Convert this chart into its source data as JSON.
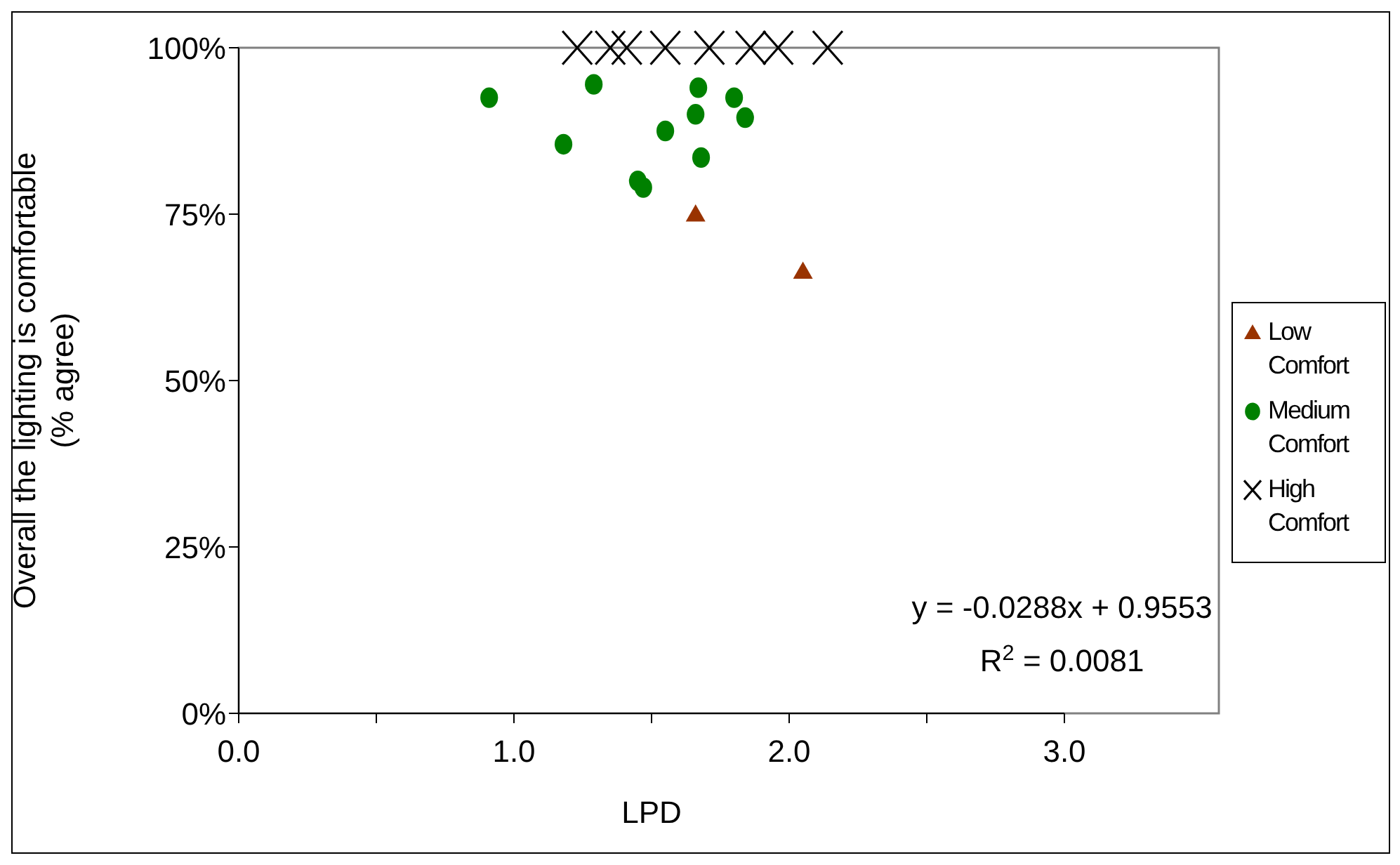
{
  "chart_data": {
    "type": "scatter",
    "xlabel": "LPD",
    "ylabel": "Overall the lighting is comfortable\n(% agree)",
    "xlim": [
      0,
      3
    ],
    "xticks": [
      {
        "value": 0,
        "label": "0.0"
      },
      {
        "value": 0.5,
        "label": null
      },
      {
        "value": 1,
        "label": "1.0"
      },
      {
        "value": 1.5,
        "label": null
      },
      {
        "value": 2,
        "label": "2.0"
      },
      {
        "value": 2.5,
        "label": null
      },
      {
        "value": 3,
        "label": "3.0"
      }
    ],
    "ylim": [
      0,
      100
    ],
    "yticks": [
      {
        "value": 0,
        "label": "0%"
      },
      {
        "value": 25,
        "label": "25%"
      },
      {
        "value": 50,
        "label": "50%"
      },
      {
        "value": 75,
        "label": "75%"
      },
      {
        "value": 100,
        "label": "100%"
      }
    ],
    "grid": false,
    "legend": "right",
    "series": [
      {
        "name": "Low Comfort",
        "color": "#993300",
        "marker": "triangle",
        "x": [
          1.66,
          2.05
        ],
        "values": [
          75,
          66.4
        ]
      },
      {
        "name": "Medium Comfort",
        "color": "#008000",
        "marker": "circle",
        "x": [
          0.91,
          1.29,
          1.18,
          1.67,
          1.8,
          1.66,
          1.84,
          1.55,
          1.68,
          1.45,
          1.47
        ],
        "values": [
          92.5,
          94.5,
          85.5,
          94,
          92.5,
          90,
          89.5,
          87.5,
          83.5,
          80,
          79
        ]
      },
      {
        "name": "High Comfort",
        "color": "#000000",
        "marker": "cross",
        "x": [
          1.23,
          1.35,
          1.41,
          1.55,
          1.71,
          1.86,
          1.96,
          2.14
        ],
        "values": [
          100,
          100,
          100,
          100,
          100,
          100,
          100,
          100
        ]
      }
    ],
    "annotations": [
      "y = -0.0288x + 0.9553",
      "R$^{2}$ = 0.0081"
    ]
  }
}
